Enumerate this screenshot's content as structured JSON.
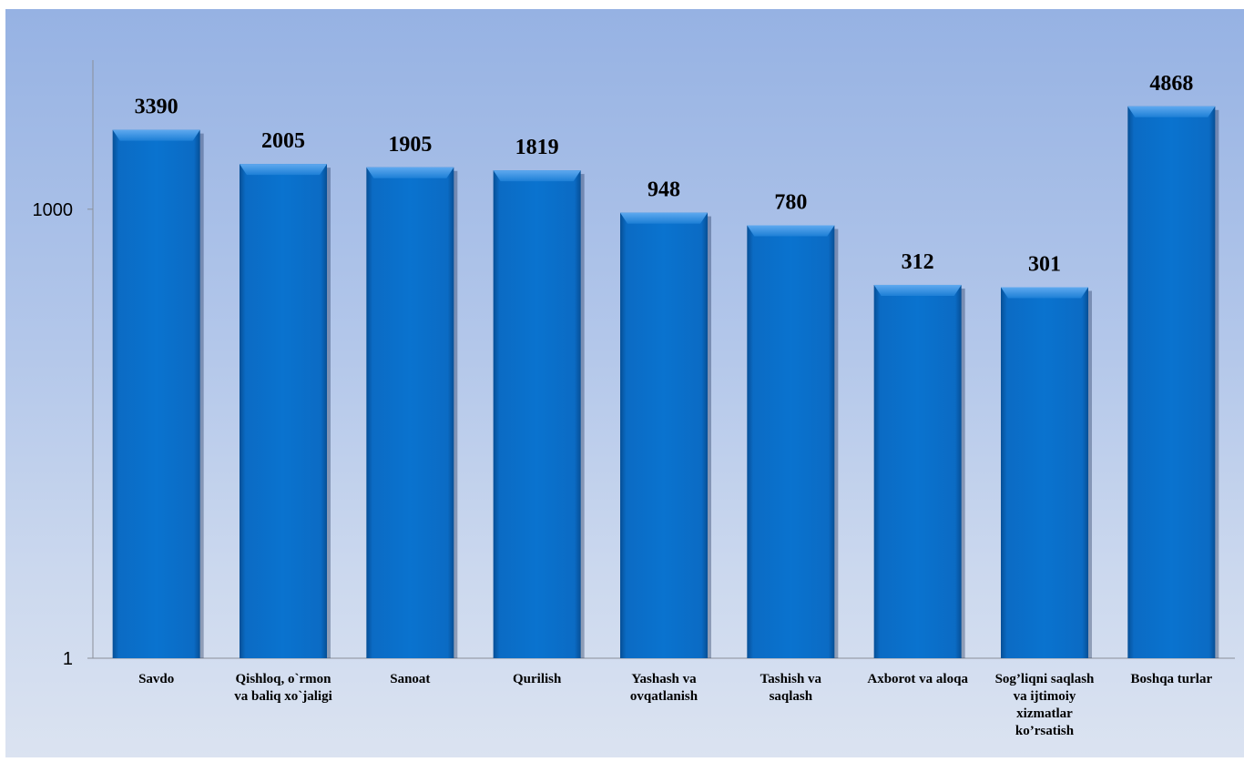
{
  "chart_data": {
    "type": "bar",
    "categories": [
      [
        "Savdo"
      ],
      [
        "Qishloq, o`rmon",
        "va baliq xo`jaligi"
      ],
      [
        "Sanoat"
      ],
      [
        "Qurilish"
      ],
      [
        "Yashash va",
        "ovqatlanish"
      ],
      [
        "Tashish va",
        "saqlash"
      ],
      [
        "Axborot va aloqa"
      ],
      [
        "Sog’liqni saqlash",
        "va ijtimoiy",
        "xizmatlar",
        "ko’rsatish"
      ],
      [
        "Boshqa  turlar"
      ]
    ],
    "values": [
      3390,
      2005,
      1905,
      1819,
      948,
      780,
      312,
      301,
      4868
    ],
    "yscale": "log",
    "ylim": [
      1,
      10000
    ],
    "yticks": [
      1,
      1000
    ],
    "grid": false,
    "bar_color": "#0a6fc9"
  }
}
